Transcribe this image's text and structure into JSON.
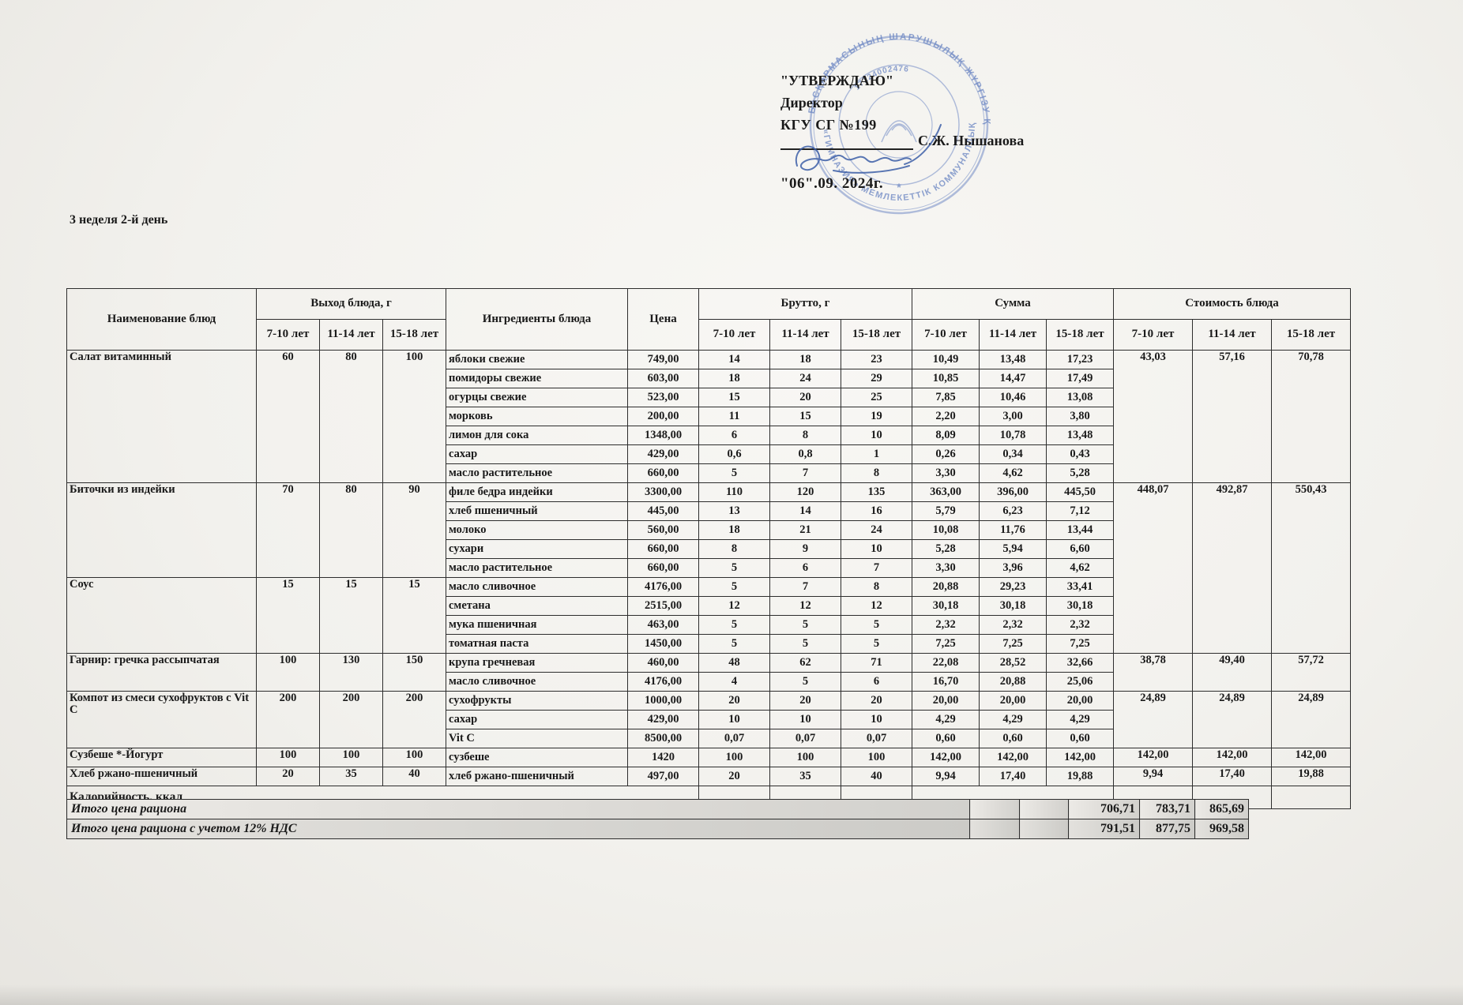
{
  "approval": {
    "heading": "\"УТВЕРЖДАЮ\"",
    "role": "Директор",
    "org": "КГУ СГ №199",
    "approver": "С.Ж. Нышанова",
    "date": "\"06\".09. 2024г."
  },
  "stamp": {
    "ring_text_outer": "БАСҚАРМАСЫНЫҢ ШАРУШЫЛЫҚ ЖҮРГІЗУ ҚҰҚЫҒЫНДАҒЫ",
    "ring_text_inner": "«ГИМНАЗИЯ» МЕМЛЕКЕТТІК КОММУНАЛДЫҚ",
    "reg_number": "17124002476",
    "color": "#5b79bd"
  },
  "doc_title": "3 неделя 2-й день",
  "table": {
    "headers": {
      "dish": "Наименование блюд",
      "output": "Выход блюда, г",
      "ingredients": "Ингредиенты блюда",
      "price": "Цена",
      "brutto": "Брутто, г",
      "sum": "Сумма",
      "cost": "Стоимость блюда",
      "ages": [
        "7-10 лет",
        "11-14 лет",
        "15-18 лет"
      ]
    },
    "calories_label": "Калорийность, ккал",
    "dishes": [
      {
        "name": "Салат витаминный",
        "output": [
          "60",
          "80",
          "100"
        ],
        "cost": [
          "43,03",
          "57,16",
          "70,78"
        ],
        "cost_rows": 7,
        "ingredients": [
          {
            "name": "яблоки свежие",
            "price": "749,00",
            "brutto": [
              "14",
              "18",
              "23"
            ],
            "sum": [
              "10,49",
              "13,48",
              "17,23"
            ]
          },
          {
            "name": "помидоры свежие",
            "price": "603,00",
            "brutto": [
              "18",
              "24",
              "29"
            ],
            "sum": [
              "10,85",
              "14,47",
              "17,49"
            ]
          },
          {
            "name": "огурцы свежие",
            "price": "523,00",
            "brutto": [
              "15",
              "20",
              "25"
            ],
            "sum": [
              "7,85",
              "10,46",
              "13,08"
            ]
          },
          {
            "name": "морковь",
            "price": "200,00",
            "brutto": [
              "11",
              "15",
              "19"
            ],
            "sum": [
              "2,20",
              "3,00",
              "3,80"
            ]
          },
          {
            "name": "лимон для сока",
            "price": "1348,00",
            "brutto": [
              "6",
              "8",
              "10"
            ],
            "sum": [
              "8,09",
              "10,78",
              "13,48"
            ]
          },
          {
            "name": "сахар",
            "price": "429,00",
            "brutto": [
              "0,6",
              "0,8",
              "1"
            ],
            "sum": [
              "0,26",
              "0,34",
              "0,43"
            ]
          },
          {
            "name": "масло растительное",
            "price": "660,00",
            "brutto": [
              "5",
              "7",
              "8"
            ],
            "sum": [
              "3,30",
              "4,62",
              "5,28"
            ]
          }
        ]
      },
      {
        "name": "Биточки из индейки",
        "output": [
          "70",
          "80",
          "90"
        ],
        "cost": [
          "448,07",
          "492,87",
          "550,43"
        ],
        "cost_rows": 9,
        "ingredients": [
          {
            "name": "филе бедра индейки",
            "price": "3300,00",
            "brutto": [
              "110",
              "120",
              "135"
            ],
            "sum": [
              "363,00",
              "396,00",
              "445,50"
            ]
          },
          {
            "name": "хлеб пшеничный",
            "price": "445,00",
            "brutto": [
              "13",
              "14",
              "16"
            ],
            "sum": [
              "5,79",
              "6,23",
              "7,12"
            ]
          },
          {
            "name": "молоко",
            "price": "560,00",
            "brutto": [
              "18",
              "21",
              "24"
            ],
            "sum": [
              "10,08",
              "11,76",
              "13,44"
            ]
          },
          {
            "name": "сухари",
            "price": "660,00",
            "brutto": [
              "8",
              "9",
              "10"
            ],
            "sum": [
              "5,28",
              "5,94",
              "6,60"
            ]
          },
          {
            "name": "масло растительное",
            "price": "660,00",
            "brutto": [
              "5",
              "6",
              "7"
            ],
            "sum": [
              "3,30",
              "3,96",
              "4,62"
            ]
          }
        ]
      },
      {
        "name": "Соус",
        "output": [
          "15",
          "15",
          "15"
        ],
        "cost": null,
        "cost_rows": 0,
        "ingredients": [
          {
            "name": "масло сливочное",
            "price": "4176,00",
            "brutto": [
              "5",
              "7",
              "8"
            ],
            "sum": [
              "20,88",
              "29,23",
              "33,41"
            ]
          },
          {
            "name": "сметана",
            "price": "2515,00",
            "brutto": [
              "12",
              "12",
              "12"
            ],
            "sum": [
              "30,18",
              "30,18",
              "30,18"
            ]
          },
          {
            "name": "мука пшеничная",
            "price": "463,00",
            "brutto": [
              "5",
              "5",
              "5"
            ],
            "sum": [
              "2,32",
              "2,32",
              "2,32"
            ]
          },
          {
            "name": "томатная паста",
            "price": "1450,00",
            "brutto": [
              "5",
              "5",
              "5"
            ],
            "sum": [
              "7,25",
              "7,25",
              "7,25"
            ]
          }
        ]
      },
      {
        "name": "Гарнир: гречка рассыпчатая",
        "output": [
          "100",
          "130",
          "150"
        ],
        "cost": [
          "38,78",
          "49,40",
          "57,72"
        ],
        "cost_rows": 2,
        "ingredients": [
          {
            "name": "крупа гречневая",
            "price": "460,00",
            "brutto": [
              "48",
              "62",
              "71"
            ],
            "sum": [
              "22,08",
              "28,52",
              "32,66"
            ]
          },
          {
            "name": "масло сливочное",
            "price": "4176,00",
            "brutto": [
              "4",
              "5",
              "6"
            ],
            "sum": [
              "16,70",
              "20,88",
              "25,06"
            ]
          }
        ]
      },
      {
        "name": "Компот из смеси сухофруктов с Vit C",
        "output": [
          "200",
          "200",
          "200"
        ],
        "cost": [
          "24,89",
          "24,89",
          "24,89"
        ],
        "cost_rows": 3,
        "ingredients": [
          {
            "name": "сухофрукты",
            "price": "1000,00",
            "brutto": [
              "20",
              "20",
              "20"
            ],
            "sum": [
              "20,00",
              "20,00",
              "20,00"
            ]
          },
          {
            "name": "сахар",
            "price": "429,00",
            "brutto": [
              "10",
              "10",
              "10"
            ],
            "sum": [
              "4,29",
              "4,29",
              "4,29"
            ]
          },
          {
            "name": "Vit C",
            "price": "8500,00",
            "brutto": [
              "0,07",
              "0,07",
              "0,07"
            ],
            "sum": [
              "0,60",
              "0,60",
              "0,60"
            ]
          }
        ]
      },
      {
        "name": "Сузбеше *-Йогурт",
        "output": [
          "100",
          "100",
          "100"
        ],
        "cost": [
          "142,00",
          "142,00",
          "142,00"
        ],
        "cost_rows": 1,
        "ingredients": [
          {
            "name": "сузбеше",
            "price": "1420",
            "brutto": [
              "100",
              "100",
              "100"
            ],
            "sum": [
              "142,00",
              "142,00",
              "142,00"
            ]
          }
        ]
      },
      {
        "name": "Хлеб ржано-пшеничный",
        "output": [
          "20",
          "35",
          "40"
        ],
        "cost": [
          "9,94",
          "17,40",
          "19,88"
        ],
        "cost_rows": 1,
        "ingredients": [
          {
            "name": "хлеб ржано-пшеничный",
            "price": "497,00",
            "brutto": [
              "20",
              "35",
              "40"
            ],
            "sum": [
              "9,94",
              "17,40",
              "19,88"
            ]
          }
        ]
      }
    ]
  },
  "totals": [
    {
      "label": "Итого цена рациона",
      "values": [
        "706,71",
        "783,71",
        "865,69"
      ]
    },
    {
      "label": "Итого цена рациона с учетом 12% НДС",
      "values": [
        "791,51",
        "877,75",
        "969,58"
      ]
    }
  ]
}
